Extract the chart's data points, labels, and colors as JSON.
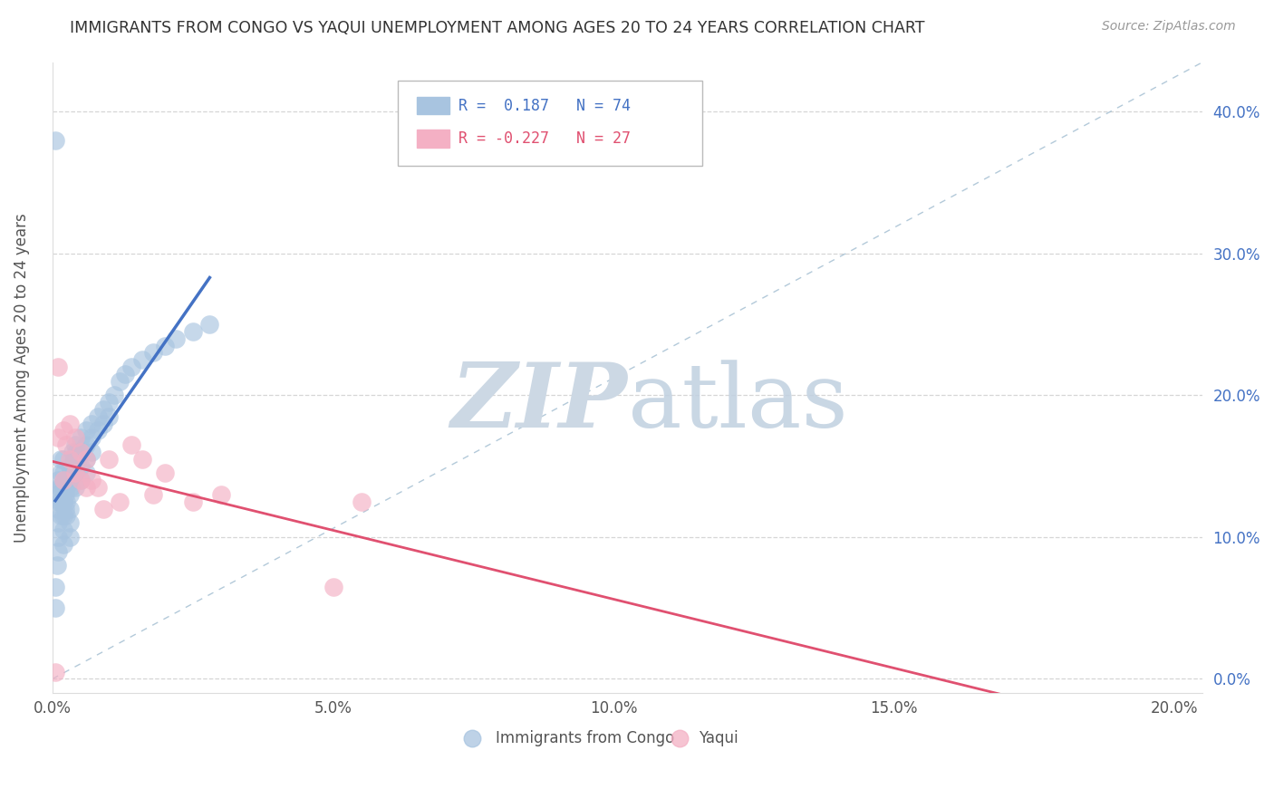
{
  "title": "IMMIGRANTS FROM CONGO VS YAQUI UNEMPLOYMENT AMONG AGES 20 TO 24 YEARS CORRELATION CHART",
  "source": "Source: ZipAtlas.com",
  "ylabel": "Unemployment Among Ages 20 to 24 years",
  "xlim": [
    0.0,
    0.205
  ],
  "ylim": [
    -0.01,
    0.435
  ],
  "xticks": [
    0.0,
    0.05,
    0.1,
    0.15,
    0.2
  ],
  "yticks": [
    0.0,
    0.1,
    0.2,
    0.3,
    0.4
  ],
  "xtick_labels": [
    "0.0%",
    "5.0%",
    "10.0%",
    "15.0%",
    "20.0%"
  ],
  "ytick_labels": [
    "0.0%",
    "10.0%",
    "20.0%",
    "30.0%",
    "40.0%"
  ],
  "r1": "0.187",
  "n1": "74",
  "r2": "-0.227",
  "n2": "27",
  "series1_label": "Immigrants from Congo",
  "series2_label": "Yaqui",
  "series1_color": "#a8c4e0",
  "series2_color": "#f4b0c4",
  "line1_color": "#4472c4",
  "line2_color": "#e05070",
  "ref_line_color": "#a0bcd0",
  "bg_color": "#ffffff",
  "grid_color": "#cccccc",
  "congo_x": [
    0.0005,
    0.0005,
    0.0005,
    0.0008,
    0.001,
    0.001,
    0.001,
    0.001,
    0.001,
    0.001,
    0.0012,
    0.0012,
    0.0015,
    0.0015,
    0.0015,
    0.0015,
    0.0015,
    0.002,
    0.002,
    0.002,
    0.002,
    0.002,
    0.002,
    0.002,
    0.0022,
    0.0022,
    0.0022,
    0.0025,
    0.0025,
    0.0025,
    0.003,
    0.003,
    0.003,
    0.003,
    0.003,
    0.003,
    0.0032,
    0.0032,
    0.0035,
    0.0035,
    0.0038,
    0.004,
    0.004,
    0.004,
    0.004,
    0.0042,
    0.0045,
    0.005,
    0.005,
    0.005,
    0.005,
    0.006,
    0.006,
    0.006,
    0.006,
    0.007,
    0.007,
    0.007,
    0.008,
    0.008,
    0.009,
    0.009,
    0.01,
    0.01,
    0.011,
    0.012,
    0.013,
    0.014,
    0.016,
    0.018,
    0.02,
    0.022,
    0.025,
    0.028
  ],
  "congo_y": [
    0.38,
    0.065,
    0.05,
    0.08,
    0.14,
    0.13,
    0.12,
    0.11,
    0.1,
    0.09,
    0.135,
    0.125,
    0.155,
    0.145,
    0.135,
    0.125,
    0.115,
    0.155,
    0.145,
    0.135,
    0.125,
    0.115,
    0.105,
    0.095,
    0.14,
    0.13,
    0.12,
    0.135,
    0.125,
    0.115,
    0.15,
    0.14,
    0.13,
    0.12,
    0.11,
    0.1,
    0.145,
    0.135,
    0.16,
    0.15,
    0.155,
    0.165,
    0.155,
    0.145,
    0.135,
    0.16,
    0.155,
    0.17,
    0.16,
    0.15,
    0.14,
    0.175,
    0.165,
    0.155,
    0.145,
    0.18,
    0.17,
    0.16,
    0.185,
    0.175,
    0.19,
    0.18,
    0.195,
    0.185,
    0.2,
    0.21,
    0.215,
    0.22,
    0.225,
    0.23,
    0.235,
    0.24,
    0.245,
    0.25
  ],
  "yaqui_x": [
    0.0005,
    0.001,
    0.001,
    0.002,
    0.002,
    0.0025,
    0.003,
    0.003,
    0.004,
    0.004,
    0.005,
    0.005,
    0.006,
    0.006,
    0.007,
    0.008,
    0.009,
    0.01,
    0.012,
    0.014,
    0.016,
    0.018,
    0.02,
    0.025,
    0.03,
    0.05,
    0.055
  ],
  "yaqui_y": [
    0.005,
    0.22,
    0.17,
    0.175,
    0.14,
    0.165,
    0.18,
    0.155,
    0.17,
    0.145,
    0.16,
    0.14,
    0.155,
    0.135,
    0.14,
    0.135,
    0.12,
    0.155,
    0.125,
    0.165,
    0.155,
    0.13,
    0.145,
    0.125,
    0.13,
    0.065,
    0.125
  ]
}
